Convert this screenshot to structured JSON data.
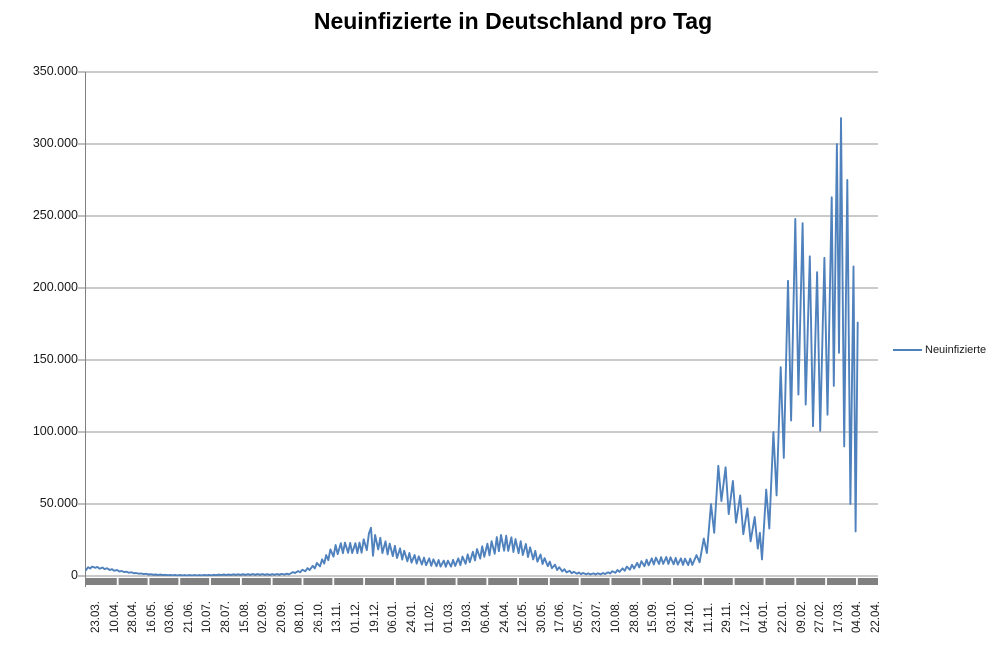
{
  "chart_data": {
    "type": "line",
    "title": "Neuinfizierte in Deutschland pro Tag",
    "xlabel": "",
    "ylabel": "",
    "ylim": [
      0,
      350000
    ],
    "y_tick_step": 50000,
    "y_tick_labels": [
      "0",
      "50.000",
      "100.000",
      "150.000",
      "200.000",
      "250.000",
      "300.000",
      "350.000"
    ],
    "x_tick_labels": [
      "23.03.",
      "10.04.",
      "28.04.",
      "16.05.",
      "03.06.",
      "21.06.",
      "10.07.",
      "28.07.",
      "15.08.",
      "02.09.",
      "20.09.",
      "08.10.",
      "26.10.",
      "13.11.",
      "01.12.",
      "19.12.",
      "06.01.",
      "24.01.",
      "11.02.",
      "01.03.",
      "19.03.",
      "06.04.",
      "24.04.",
      "12.05.",
      "30.05.",
      "17.06.",
      "05.07.",
      "23.07.",
      "10.08.",
      "28.08.",
      "15.09.",
      "03.10.",
      "24.10.",
      "11.11.",
      "29.11.",
      "17.12.",
      "04.01.",
      "22.01.",
      "09.02.",
      "27.02.",
      "17.03.",
      "04.04.",
      "22.04."
    ],
    "x_label_interval_days": 18,
    "grid": "horizontal",
    "legend_position": "right",
    "series": [
      {
        "name": "Neuinfizierte",
        "color": "#4F81BD",
        "points": [
          [
            0,
            4200
          ],
          [
            2,
            6100
          ],
          [
            4,
            5200
          ],
          [
            6,
            6500
          ],
          [
            9,
            5700
          ],
          [
            11,
            6300
          ],
          [
            13,
            5100
          ],
          [
            16,
            5900
          ],
          [
            18,
            4700
          ],
          [
            20,
            5400
          ],
          [
            23,
            4200
          ],
          [
            25,
            4800
          ],
          [
            27,
            3700
          ],
          [
            30,
            4100
          ],
          [
            32,
            3100
          ],
          [
            34,
            3500
          ],
          [
            37,
            2700
          ],
          [
            39,
            3000
          ],
          [
            41,
            2300
          ],
          [
            44,
            2600
          ],
          [
            46,
            1900
          ],
          [
            48,
            2100
          ],
          [
            51,
            1600
          ],
          [
            53,
            1800
          ],
          [
            55,
            1300
          ],
          [
            58,
            1500
          ],
          [
            60,
            1050
          ],
          [
            62,
            1250
          ],
          [
            65,
            900
          ],
          [
            67,
            1100
          ],
          [
            69,
            750
          ],
          [
            72,
            950
          ],
          [
            74,
            650
          ],
          [
            76,
            850
          ],
          [
            79,
            560
          ],
          [
            81,
            780
          ],
          [
            83,
            480
          ],
          [
            86,
            720
          ],
          [
            88,
            430
          ],
          [
            90,
            680
          ],
          [
            93,
            400
          ],
          [
            95,
            640
          ],
          [
            97,
            380
          ],
          [
            100,
            620
          ],
          [
            102,
            390
          ],
          [
            104,
            640
          ],
          [
            107,
            410
          ],
          [
            109,
            680
          ],
          [
            111,
            430
          ],
          [
            114,
            730
          ],
          [
            116,
            470
          ],
          [
            118,
            790
          ],
          [
            121,
            520
          ],
          [
            123,
            860
          ],
          [
            125,
            580
          ],
          [
            128,
            940
          ],
          [
            130,
            640
          ],
          [
            132,
            1020
          ],
          [
            135,
            700
          ],
          [
            137,
            1090
          ],
          [
            139,
            750
          ],
          [
            142,
            1150
          ],
          [
            144,
            790
          ],
          [
            146,
            1200
          ],
          [
            149,
            820
          ],
          [
            151,
            1240
          ],
          [
            153,
            840
          ],
          [
            156,
            1270
          ],
          [
            158,
            860
          ],
          [
            160,
            1290
          ],
          [
            163,
            870
          ],
          [
            165,
            1300
          ],
          [
            167,
            870
          ],
          [
            170,
            1290
          ],
          [
            172,
            860
          ],
          [
            174,
            1280
          ],
          [
            177,
            860
          ],
          [
            179,
            1290
          ],
          [
            181,
            880
          ],
          [
            184,
            1340
          ],
          [
            186,
            930
          ],
          [
            188,
            1440
          ],
          [
            191,
            1030
          ],
          [
            193,
            1600
          ],
          [
            195,
            1200
          ],
          [
            197,
            1900
          ],
          [
            199,
            2700
          ],
          [
            201,
            2100
          ],
          [
            204,
            3400
          ],
          [
            206,
            2600
          ],
          [
            208,
            4300
          ],
          [
            211,
            3300
          ],
          [
            213,
            5500
          ],
          [
            215,
            4100
          ],
          [
            218,
            7000
          ],
          [
            220,
            5300
          ],
          [
            222,
            9000
          ],
          [
            225,
            6700
          ],
          [
            227,
            11500
          ],
          [
            229,
            8600
          ],
          [
            231,
            14500
          ],
          [
            233,
            11000
          ],
          [
            235,
            18500
          ],
          [
            238,
            13500
          ],
          [
            240,
            21500
          ],
          [
            242,
            15200
          ],
          [
            245,
            22800
          ],
          [
            247,
            15800
          ],
          [
            249,
            23200
          ],
          [
            252,
            16100
          ],
          [
            254,
            23000
          ],
          [
            256,
            15900
          ],
          [
            259,
            22800
          ],
          [
            261,
            15800
          ],
          [
            263,
            23200
          ],
          [
            265,
            16200
          ],
          [
            267,
            25500
          ],
          [
            270,
            18000
          ],
          [
            272,
            29500
          ],
          [
            274,
            33500
          ],
          [
            276,
            14000
          ],
          [
            278,
            28500
          ],
          [
            281,
            18500
          ],
          [
            283,
            26500
          ],
          [
            285,
            16000
          ],
          [
            288,
            24000
          ],
          [
            290,
            15000
          ],
          [
            292,
            22500
          ],
          [
            295,
            13800
          ],
          [
            297,
            21000
          ],
          [
            299,
            12600
          ],
          [
            302,
            19200
          ],
          [
            304,
            11400
          ],
          [
            306,
            17600
          ],
          [
            309,
            10200
          ],
          [
            311,
            16000
          ],
          [
            313,
            9300
          ],
          [
            316,
            14600
          ],
          [
            318,
            8600
          ],
          [
            320,
            13600
          ],
          [
            323,
            8000
          ],
          [
            325,
            12800
          ],
          [
            327,
            7500
          ],
          [
            330,
            12200
          ],
          [
            332,
            7100
          ],
          [
            334,
            11600
          ],
          [
            337,
            6800
          ],
          [
            339,
            11100
          ],
          [
            341,
            6500
          ],
          [
            344,
            10700
          ],
          [
            346,
            6400
          ],
          [
            348,
            10600
          ],
          [
            351,
            6500
          ],
          [
            353,
            11200
          ],
          [
            355,
            7000
          ],
          [
            358,
            12200
          ],
          [
            360,
            7600
          ],
          [
            362,
            13500
          ],
          [
            365,
            8500
          ],
          [
            367,
            15000
          ],
          [
            369,
            9600
          ],
          [
            372,
            16800
          ],
          [
            374,
            10800
          ],
          [
            376,
            18700
          ],
          [
            379,
            12100
          ],
          [
            381,
            20600
          ],
          [
            383,
            13300
          ],
          [
            386,
            22400
          ],
          [
            388,
            14400
          ],
          [
            390,
            24200
          ],
          [
            393,
            15400
          ],
          [
            395,
            27000
          ],
          [
            397,
            17200
          ],
          [
            399,
            28500
          ],
          [
            402,
            17600
          ],
          [
            404,
            28000
          ],
          [
            406,
            17400
          ],
          [
            409,
            26900
          ],
          [
            411,
            16700
          ],
          [
            413,
            25600
          ],
          [
            416,
            15800
          ],
          [
            418,
            24200
          ],
          [
            420,
            14600
          ],
          [
            423,
            22200
          ],
          [
            425,
            13100
          ],
          [
            427,
            19900
          ],
          [
            430,
            11500
          ],
          [
            432,
            17400
          ],
          [
            434,
            9900
          ],
          [
            437,
            14900
          ],
          [
            439,
            8300
          ],
          [
            441,
            12400
          ],
          [
            444,
            6800
          ],
          [
            446,
            10000
          ],
          [
            448,
            5400
          ],
          [
            451,
            7900
          ],
          [
            453,
            4200
          ],
          [
            455,
            6100
          ],
          [
            458,
            3200
          ],
          [
            460,
            4700
          ],
          [
            462,
            2500
          ],
          [
            465,
            3600
          ],
          [
            467,
            1950
          ],
          [
            469,
            2900
          ],
          [
            472,
            1600
          ],
          [
            474,
            2400
          ],
          [
            476,
            1350
          ],
          [
            478,
            2050
          ],
          [
            481,
            1200
          ],
          [
            483,
            1850
          ],
          [
            485,
            1100
          ],
          [
            488,
            1800
          ],
          [
            490,
            1100
          ],
          [
            492,
            1850
          ],
          [
            495,
            1200
          ],
          [
            497,
            2100
          ],
          [
            499,
            1400
          ],
          [
            502,
            2600
          ],
          [
            504,
            1750
          ],
          [
            506,
            3300
          ],
          [
            509,
            2250
          ],
          [
            511,
            4200
          ],
          [
            513,
            2850
          ],
          [
            516,
            5300
          ],
          [
            518,
            3600
          ],
          [
            520,
            6500
          ],
          [
            523,
            4400
          ],
          [
            525,
            7800
          ],
          [
            527,
            5200
          ],
          [
            530,
            9100
          ],
          [
            532,
            6000
          ],
          [
            534,
            10300
          ],
          [
            537,
            6800
          ],
          [
            539,
            11300
          ],
          [
            541,
            7400
          ],
          [
            544,
            12200
          ],
          [
            546,
            8000
          ],
          [
            548,
            12800
          ],
          [
            551,
            8300
          ],
          [
            553,
            13100
          ],
          [
            555,
            8400
          ],
          [
            558,
            13200
          ],
          [
            560,
            8300
          ],
          [
            562,
            13000
          ],
          [
            565,
            8100
          ],
          [
            567,
            12600
          ],
          [
            569,
            7900
          ],
          [
            572,
            12200
          ],
          [
            574,
            7700
          ],
          [
            576,
            12000
          ],
          [
            579,
            7600
          ],
          [
            581,
            12100
          ],
          [
            583,
            7700
          ],
          [
            587,
            14500
          ],
          [
            590,
            9500
          ],
          [
            594,
            26000
          ],
          [
            597,
            16000
          ],
          [
            601,
            50000
          ],
          [
            604,
            30000
          ],
          [
            608,
            76500
          ],
          [
            611,
            52000
          ],
          [
            615,
            75500
          ],
          [
            618,
            43000
          ],
          [
            622,
            66000
          ],
          [
            625,
            37000
          ],
          [
            629,
            56000
          ],
          [
            632,
            29000
          ],
          [
            636,
            47000
          ],
          [
            639,
            24000
          ],
          [
            643,
            41000
          ],
          [
            646,
            19000
          ],
          [
            648,
            30000
          ],
          [
            650,
            11500
          ],
          [
            654,
            60000
          ],
          [
            657,
            33000
          ],
          [
            661,
            100000
          ],
          [
            664,
            56000
          ],
          [
            668,
            145000
          ],
          [
            671,
            82000
          ],
          [
            675,
            205000
          ],
          [
            678,
            108000
          ],
          [
            682,
            248000
          ],
          [
            685,
            126000
          ],
          [
            689,
            245000
          ],
          [
            692,
            119000
          ],
          [
            696,
            222000
          ],
          [
            699,
            104000
          ],
          [
            703,
            211000
          ],
          [
            706,
            101000
          ],
          [
            710,
            221000
          ],
          [
            713,
            112000
          ],
          [
            717,
            263000
          ],
          [
            719,
            132000
          ],
          [
            722,
            300000
          ],
          [
            724,
            155000
          ],
          [
            726,
            318000
          ],
          [
            729,
            90000
          ],
          [
            732,
            275000
          ],
          [
            735,
            50000
          ],
          [
            738,
            215000
          ],
          [
            740,
            31000
          ],
          [
            742,
            176000
          ]
        ]
      }
    ]
  },
  "colors": {
    "line": "#4F81BD",
    "gridline": "#969696",
    "axis_line": "#808080",
    "axis_bar": "#808080",
    "text": "#1a1a1a",
    "title": "#000000",
    "background": "#ffffff"
  }
}
